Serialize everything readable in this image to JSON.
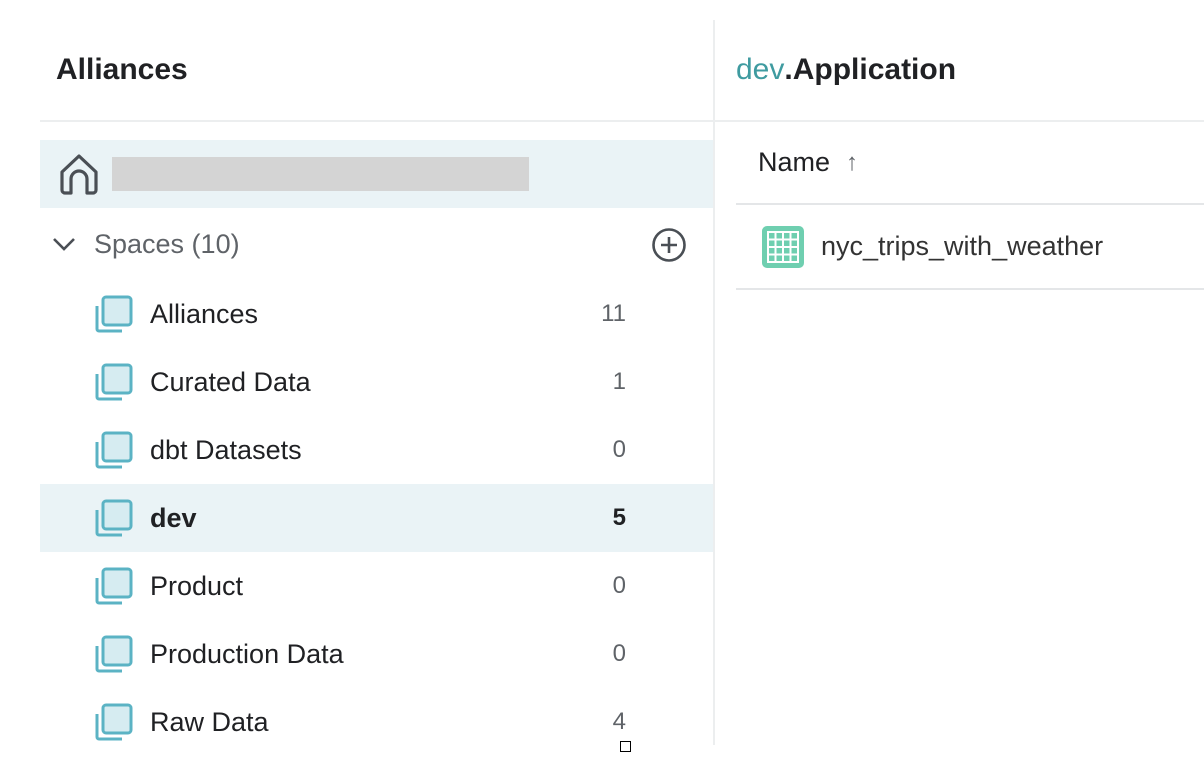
{
  "sidebar": {
    "title": "Alliances",
    "spaces_label": "Spaces (10)",
    "items": [
      {
        "label": "Alliances",
        "count": "11",
        "selected": false
      },
      {
        "label": "Curated Data",
        "count": "1",
        "selected": false
      },
      {
        "label": "dbt Datasets",
        "count": "0",
        "selected": false
      },
      {
        "label": "dev",
        "count": "5",
        "selected": true
      },
      {
        "label": "Product",
        "count": "0",
        "selected": false
      },
      {
        "label": "Production Data",
        "count": "0",
        "selected": false
      },
      {
        "label": "Raw Data",
        "count": "4",
        "selected": false
      }
    ]
  },
  "main": {
    "space": "dev",
    "title": ".Application",
    "column_header": "Name",
    "sort_icon": "arrow-up-icon",
    "rows": [
      {
        "name": "nyc_trips_with_weather",
        "icon": "table-icon"
      }
    ]
  },
  "colors": {
    "accent": "#3f9ba0",
    "selected_bg": "#eaf3f6",
    "table_icon": "#6fcfb0",
    "space_icon": "#5bb3c4"
  }
}
